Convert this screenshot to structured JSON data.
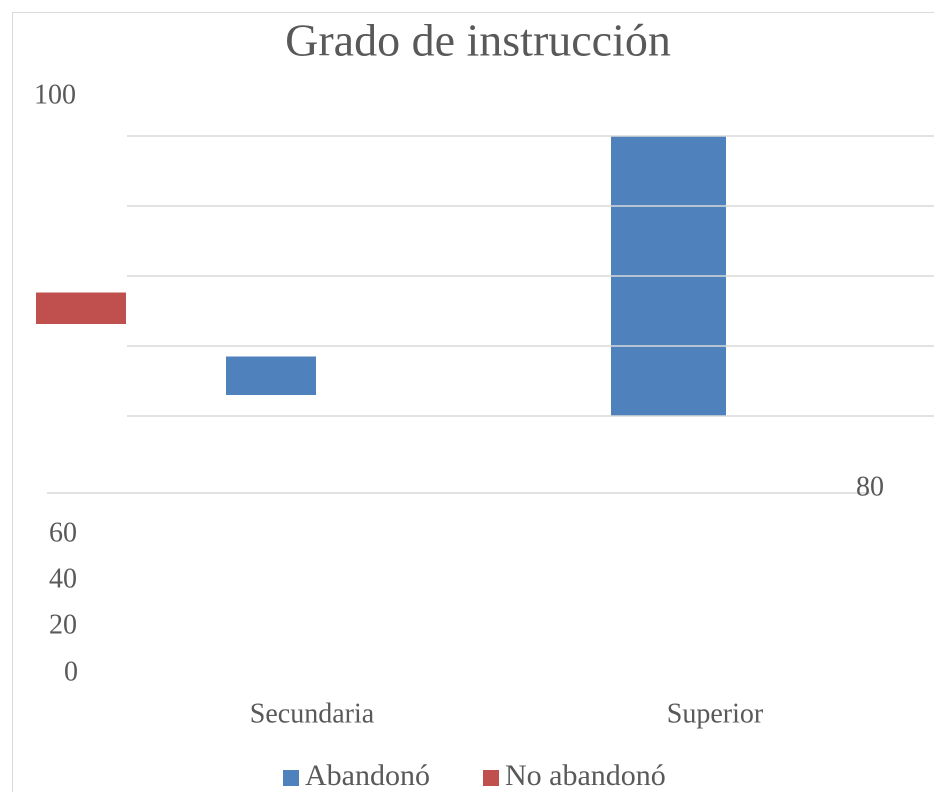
{
  "chart_data": {
    "type": "bar",
    "title": "Grado de instrucción",
    "categories": [
      "Secundaria",
      "Superior"
    ],
    "series": [
      {
        "name": "Abandonó",
        "color": "#4f81bd",
        "values": [
          11,
          80
        ]
      },
      {
        "name": "No abandonó",
        "color": "#c0504d",
        "values": [
          9,
          null
        ]
      }
    ],
    "ylim": [
      0,
      100
    ],
    "yticks": [
      0,
      20,
      40,
      60,
      80,
      100
    ],
    "grid": true
  }
}
